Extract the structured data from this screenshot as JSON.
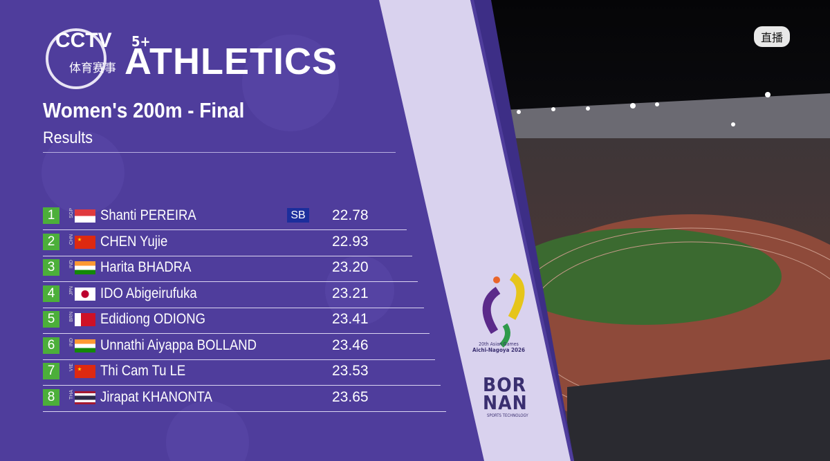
{
  "broadcast": {
    "channel": "CCTV",
    "channel_suffix": "5+",
    "channel_sub": "体育赛事",
    "live": "直播"
  },
  "header": {
    "sport": "ATHLETICS",
    "event": "Women's 200m - Final",
    "subtitle": "Results"
  },
  "table": {
    "rows": [
      {
        "rank": 1,
        "country": "SGP",
        "name": "Shanti PEREIRA",
        "note": "SB",
        "time": "22.78"
      },
      {
        "rank": 2,
        "country": "CHN",
        "name": "CHEN Yujie",
        "time": "22.93"
      },
      {
        "rank": 3,
        "country": "IND",
        "name": "Harita BHADRA",
        "time": "23.20"
      },
      {
        "rank": 4,
        "country": "JPN",
        "name": "IDO Abigeirufuka",
        "time": "23.21"
      },
      {
        "rank": 5,
        "country": "BRN",
        "name": "Edidiong ODIONG",
        "time": "23.41"
      },
      {
        "rank": 6,
        "country": "IND",
        "name": "Unnathi Aiyappa BOLLAND",
        "time": "23.46"
      },
      {
        "rank": 7,
        "country": "VIE",
        "name": "Thi Cam Tu LE",
        "time": "23.53"
      },
      {
        "rank": 8,
        "country": "THA",
        "name": "Jirapat KHANONTA",
        "time": "23.65"
      }
    ]
  },
  "sponsors": {
    "games_line1": "20th Asian Games",
    "games_line2": "Aichi-Nagoya 2026",
    "timing_top": "BOR",
    "timing_bottom": "NAN",
    "timing_sub": "SPORTS TECHNOLOGY"
  }
}
